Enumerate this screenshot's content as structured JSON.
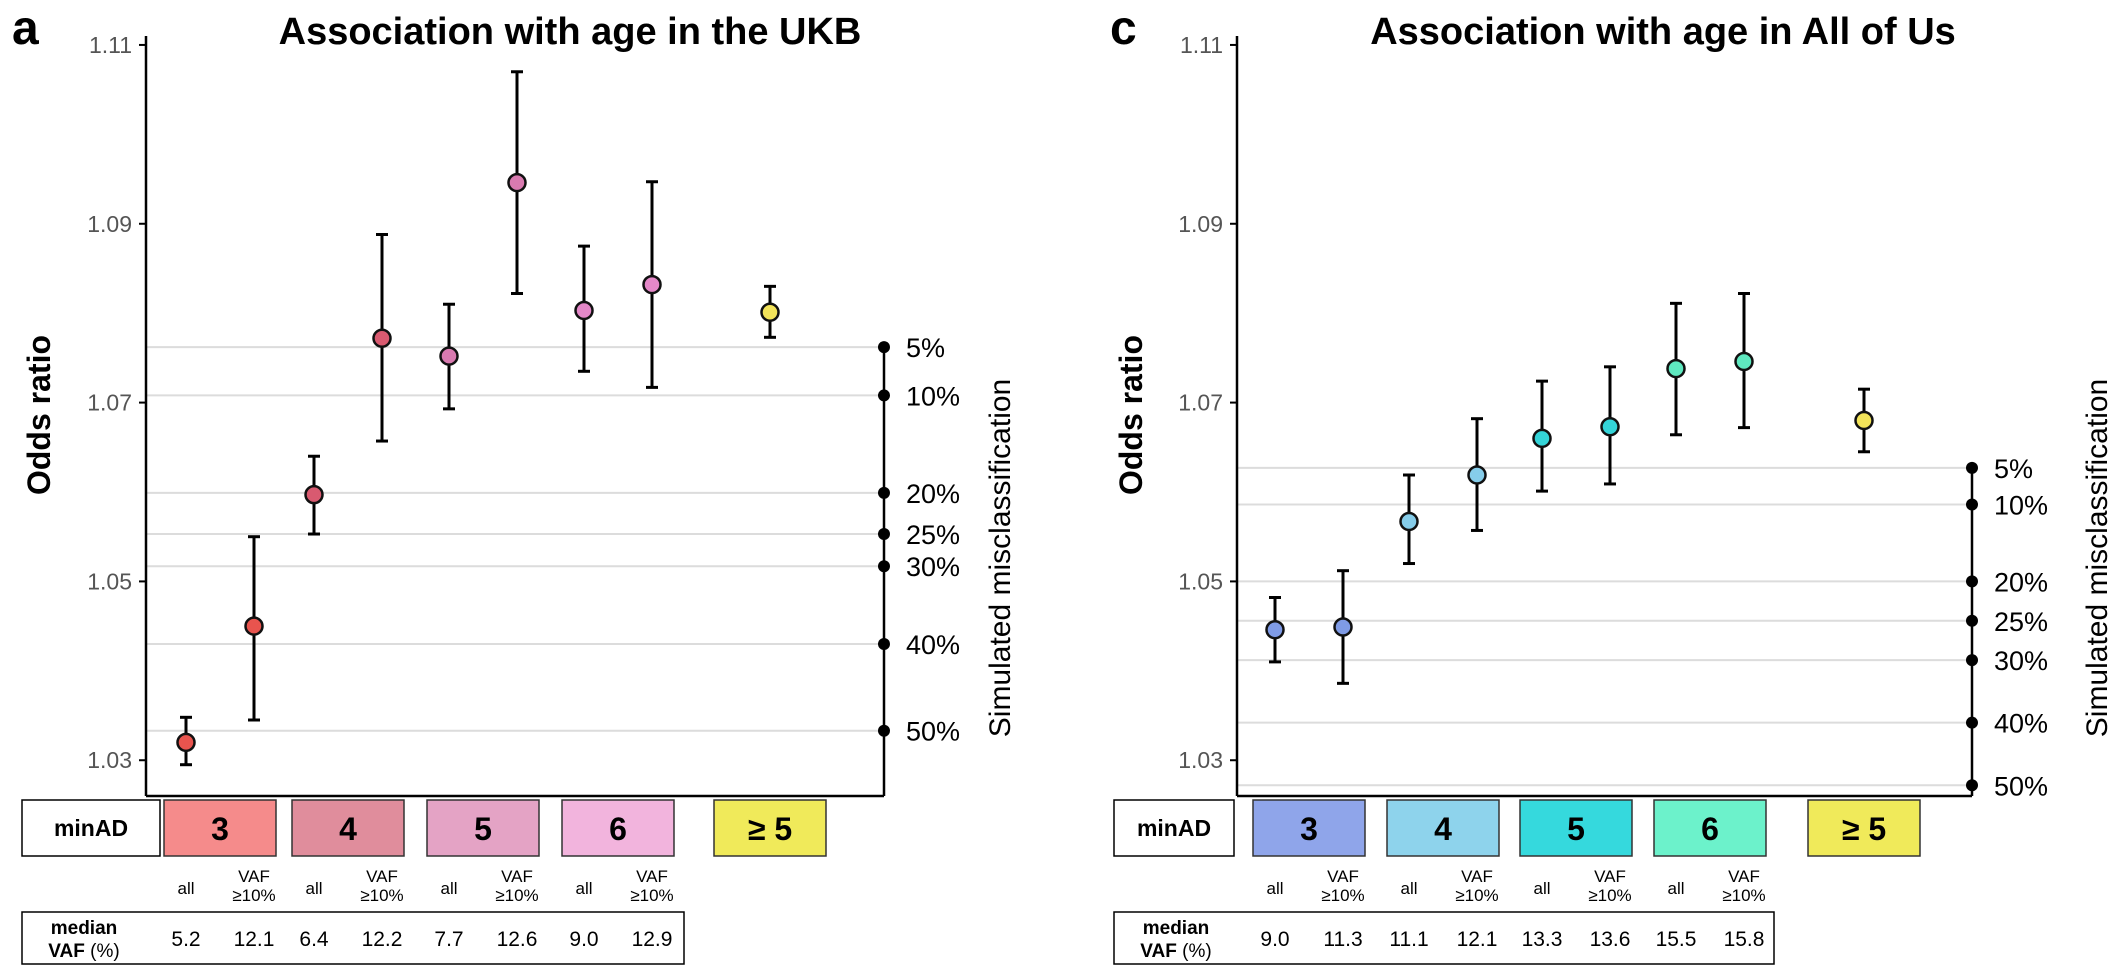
{
  "chart_data": [
    {
      "type": "scatter",
      "panel_letter": "a",
      "title": "Association with age in the UKB",
      "ylabel": "Odds ratio",
      "ylim": [
        1.026,
        1.111
      ],
      "yticks": [
        1.03,
        1.05,
        1.07,
        1.09,
        1.11
      ],
      "ytick_labels": [
        "1.03",
        "1.05",
        "1.07",
        "1.09",
        "1.11"
      ],
      "grid": false,
      "minad_label": "minAD",
      "categories": [
        {
          "label": "3",
          "color": "#f58b8b",
          "sub_labels": [
            "all",
            "VAF",
            "≥10%"
          ]
        },
        {
          "label": "4",
          "color": "#e08d9c",
          "sub_labels": [
            "all",
            "VAF",
            "≥10%"
          ]
        },
        {
          "label": "5",
          "color": "#e4a3c5",
          "sub_labels": [
            "all",
            "VAF",
            "≥10%"
          ]
        },
        {
          "label": "6",
          "color": "#f2b4dd",
          "sub_labels": [
            "all",
            "VAF",
            "≥10%"
          ]
        },
        {
          "label": "≥ 5",
          "color": "#f0ea5a",
          "sub_labels": []
        }
      ],
      "points": [
        {
          "cat": 0,
          "sub": "all",
          "or": 1.032,
          "lo": 1.0295,
          "hi": 1.0348,
          "color": "#e8544e"
        },
        {
          "cat": 0,
          "sub": "vaf",
          "or": 1.045,
          "lo": 1.0345,
          "hi": 1.055,
          "color": "#e8544e"
        },
        {
          "cat": 1,
          "sub": "all",
          "or": 1.0597,
          "lo": 1.0553,
          "hi": 1.064,
          "color": "#d95a70"
        },
        {
          "cat": 1,
          "sub": "vaf",
          "or": 1.0772,
          "lo": 1.0657,
          "hi": 1.0888,
          "color": "#d95a70"
        },
        {
          "cat": 2,
          "sub": "all",
          "or": 1.0752,
          "lo": 1.0693,
          "hi": 1.081,
          "color": "#d97ab0"
        },
        {
          "cat": 2,
          "sub": "vaf",
          "or": 1.0946,
          "lo": 1.0822,
          "hi": 1.107,
          "color": "#d97ab0"
        },
        {
          "cat": 3,
          "sub": "all",
          "or": 1.0803,
          "lo": 1.0735,
          "hi": 1.0875,
          "color": "#e488c8"
        },
        {
          "cat": 3,
          "sub": "vaf",
          "or": 1.0832,
          "lo": 1.0717,
          "hi": 1.0947,
          "color": "#e488c8"
        },
        {
          "cat": 4,
          "sub": "pooled",
          "or": 1.0801,
          "lo": 1.0773,
          "hi": 1.083,
          "color": "#f3e45a"
        }
      ],
      "misclassification": {
        "axis_label": "Simulated misclassification",
        "levels": [
          {
            "label": "5%",
            "or": 1.0762
          },
          {
            "label": "10%",
            "or": 1.0708
          },
          {
            "label": "20%",
            "or": 1.0599
          },
          {
            "label": "25%",
            "or": 1.0553
          },
          {
            "label": "30%",
            "or": 1.0517
          },
          {
            "label": "40%",
            "or": 1.043
          },
          {
            "label": "50%",
            "or": 1.0333
          }
        ]
      },
      "median_vaf": {
        "label_line1": "median",
        "label_bold": "VAF",
        "label_unit": " (%)",
        "values": [
          "5.2",
          "12.1",
          "6.4",
          "12.2",
          "7.7",
          "12.6",
          "9.0",
          "12.9"
        ]
      }
    },
    {
      "type": "scatter",
      "panel_letter": "c",
      "title": "Association with age in All of Us",
      "ylabel": "Odds ratio",
      "ylim": [
        1.026,
        1.111
      ],
      "yticks": [
        1.03,
        1.05,
        1.07,
        1.09,
        1.11
      ],
      "ytick_labels": [
        "1.03",
        "1.05",
        "1.07",
        "1.09",
        "1.11"
      ],
      "grid": false,
      "minad_label": "minAD",
      "categories": [
        {
          "label": "3",
          "color": "#8fa5ea",
          "sub_labels": [
            "all",
            "VAF",
            "≥10%"
          ]
        },
        {
          "label": "4",
          "color": "#8ed3ec",
          "sub_labels": [
            "all",
            "VAF",
            "≥10%"
          ]
        },
        {
          "label": "5",
          "color": "#35d9dd",
          "sub_labels": [
            "all",
            "VAF",
            "≥10%"
          ]
        },
        {
          "label": "6",
          "color": "#6cf2cb",
          "sub_labels": [
            "all",
            "VAF",
            "≥10%"
          ]
        },
        {
          "label": "≥ 5",
          "color": "#f0ea5a",
          "sub_labels": []
        }
      ],
      "points": [
        {
          "cat": 0,
          "sub": "all",
          "or": 1.0446,
          "lo": 1.041,
          "hi": 1.0482,
          "color": "#7f9be6"
        },
        {
          "cat": 0,
          "sub": "vaf",
          "or": 1.0449,
          "lo": 1.0386,
          "hi": 1.0512,
          "color": "#7f9be6"
        },
        {
          "cat": 1,
          "sub": "all",
          "or": 1.0567,
          "lo": 1.052,
          "hi": 1.0619,
          "color": "#86cdea"
        },
        {
          "cat": 1,
          "sub": "vaf",
          "or": 1.0619,
          "lo": 1.0557,
          "hi": 1.0682,
          "color": "#86cdea"
        },
        {
          "cat": 2,
          "sub": "all",
          "or": 1.066,
          "lo": 1.0601,
          "hi": 1.0724,
          "color": "#34d4d8"
        },
        {
          "cat": 2,
          "sub": "vaf",
          "or": 1.0673,
          "lo": 1.0609,
          "hi": 1.074,
          "color": "#34d4d8"
        },
        {
          "cat": 3,
          "sub": "all",
          "or": 1.0738,
          "lo": 1.0664,
          "hi": 1.0811,
          "color": "#5fe9c0"
        },
        {
          "cat": 3,
          "sub": "vaf",
          "or": 1.0746,
          "lo": 1.0672,
          "hi": 1.0822,
          "color": "#5fe9c0"
        },
        {
          "cat": 4,
          "sub": "pooled",
          "or": 1.068,
          "lo": 1.0645,
          "hi": 1.0715,
          "color": "#f3e45a"
        }
      ],
      "misclassification": {
        "axis_label": "Simulated misclassification",
        "levels": [
          {
            "label": "5%",
            "or": 1.0627
          },
          {
            "label": "10%",
            "or": 1.0586
          },
          {
            "label": "20%",
            "or": 1.05
          },
          {
            "label": "25%",
            "or": 1.0456
          },
          {
            "label": "30%",
            "or": 1.0412
          },
          {
            "label": "40%",
            "or": 1.0342
          },
          {
            "label": "50%",
            "or": 1.0272
          }
        ]
      },
      "median_vaf": {
        "label_line1": "median",
        "label_bold": "VAF",
        "label_unit": " (%)",
        "values": [
          "9.0",
          "11.3",
          "11.1",
          "12.1",
          "13.3",
          "13.6",
          "15.5",
          "15.8"
        ]
      }
    }
  ]
}
